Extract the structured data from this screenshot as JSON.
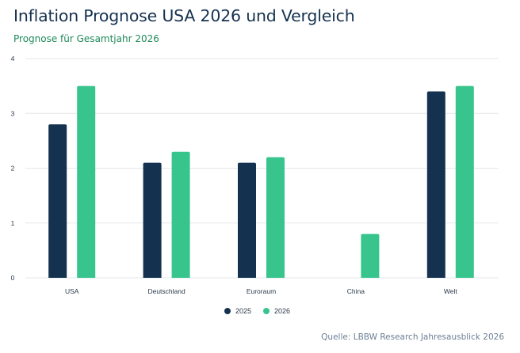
{
  "header": {
    "title": "Inflation Prognose USA 2026 und Vergleich",
    "subtitle": "Prognose für Gesamtjahr 2026"
  },
  "footer": {
    "source": "Quelle: LBBW Research Jahresausblick 2026"
  },
  "colors": {
    "series_2025": "#14324f",
    "series_2026": "#38c48d",
    "grid": "#e3e7eb",
    "title": "#16324f",
    "subtitle": "#1e8a5a"
  },
  "chart_data": {
    "type": "bar",
    "title": "Inflation Prognose USA 2026 und Vergleich",
    "subtitle": "Prognose für Gesamtjahr 2026",
    "xlabel": "",
    "ylabel": "",
    "categories": [
      "USA",
      "Deutschland",
      "Euroraum",
      "China",
      "Welt"
    ],
    "series": [
      {
        "name": "2025",
        "values": [
          2.8,
          2.1,
          2.1,
          null,
          3.4
        ]
      },
      {
        "name": "2026",
        "values": [
          3.5,
          2.3,
          2.2,
          0.8,
          3.5
        ]
      }
    ],
    "ylim": [
      0,
      4
    ],
    "yticks": [
      0,
      1,
      2,
      3,
      4
    ],
    "grid": true,
    "legend": "bottom-center"
  }
}
